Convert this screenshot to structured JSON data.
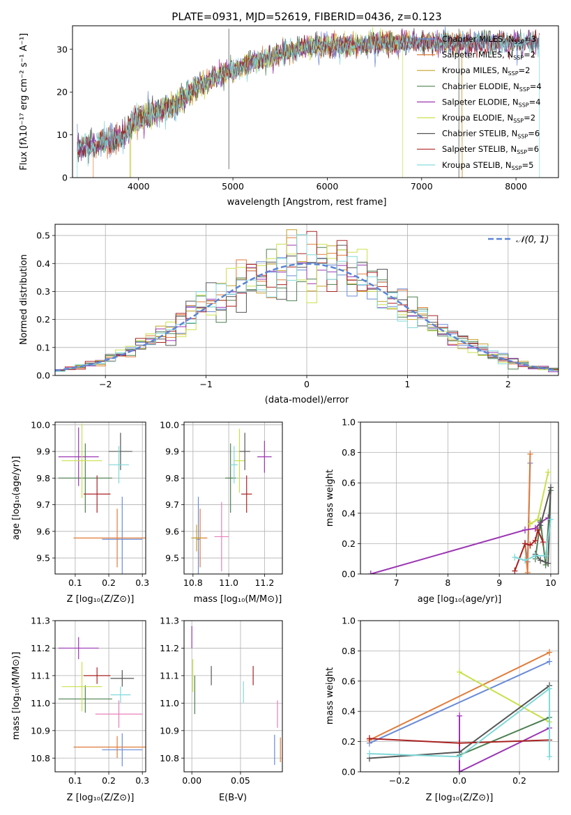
{
  "colors": {
    "Chabrier MILES": "#6a8bd9",
    "Salpeter MILES": "#e07b39",
    "Kroupa MILES": "#c4a12a",
    "Chabrier ELODIE": "#4d8050",
    "Salpeter ELODIE": "#9b35b3",
    "Kroupa ELODIE": "#c9e04a",
    "Chabrier STELIB": "#555555",
    "Salpeter STELIB": "#aa2222",
    "Kroupa STELIB": "#7fd8d8",
    "Pink": "#e87fb8",
    "Normal": "#5b84d6"
  },
  "chart_data": [
    {
      "type": "line",
      "title": "PLATE=0931, MJD=52619, FIBERID=0436, z=0.123",
      "xlabel": "wavelength [Angstrom, rest frame]",
      "ylabel": "Flux [fλ10⁻¹⁷ erg cm⁻² s⁻¹ A⁻¹]",
      "xlim": [
        3300,
        8450
      ],
      "ylim": [
        0,
        35.5
      ],
      "xticks": [
        "4000",
        "5000",
        "6000",
        "7000",
        "8000"
      ],
      "yticks": [
        "0",
        "10",
        "20",
        "30"
      ],
      "legend": [
        {
          "key": "Chabrier MILES",
          "label": "Chabrier MILES, N",
          "sub": "SSP",
          "tail": "=3"
        },
        {
          "key": "Salpeter MILES",
          "label": "Salpeter MILES, N",
          "sub": "SSP",
          "tail": "=2"
        },
        {
          "key": "Kroupa MILES",
          "label": "Kroupa MILES, N",
          "sub": "SSP",
          "tail": "=2"
        },
        {
          "key": "Chabrier ELODIE",
          "label": "Chabrier ELODIE, N",
          "sub": "SSP",
          "tail": "=4"
        },
        {
          "key": "Salpeter ELODIE",
          "label": "Salpeter ELODIE, N",
          "sub": "SSP",
          "tail": "=4"
        },
        {
          "key": "Kroupa ELODIE",
          "label": "Kroupa ELODIE, N",
          "sub": "SSP",
          "tail": "=2"
        },
        {
          "key": "Chabrier STELIB",
          "label": "Chabrier STELIB, N",
          "sub": "SSP",
          "tail": "=6"
        },
        {
          "key": "Salpeter STELIB",
          "label": "Salpeter STELIB, N",
          "sub": "SSP",
          "tail": "=6"
        },
        {
          "key": "Kroupa STELIB",
          "label": "Kroupa STELIB, N",
          "sub": "SSP",
          "tail": "=5"
        }
      ],
      "continuum": [
        [
          3350,
          7
        ],
        [
          3500,
          7.5
        ],
        [
          3700,
          8.5
        ],
        [
          3850,
          10
        ],
        [
          3950,
          13
        ],
        [
          4050,
          14
        ],
        [
          4150,
          15
        ],
        [
          4300,
          16
        ],
        [
          4400,
          17
        ],
        [
          4500,
          19
        ],
        [
          4600,
          21
        ],
        [
          4700,
          22
        ],
        [
          4800,
          23.5
        ],
        [
          4900,
          24
        ],
        [
          5000,
          25
        ],
        [
          5100,
          26
        ],
        [
          5200,
          27
        ],
        [
          5300,
          27.5
        ],
        [
          5400,
          28
        ],
        [
          5500,
          29
        ],
        [
          5600,
          29.5
        ],
        [
          5700,
          30
        ],
        [
          5800,
          30.5
        ],
        [
          5900,
          31
        ],
        [
          6000,
          31
        ],
        [
          6200,
          31
        ],
        [
          6400,
          31
        ],
        [
          6600,
          31.5
        ],
        [
          6800,
          31.5
        ],
        [
          7000,
          31.5
        ],
        [
          7200,
          31.5
        ],
        [
          7400,
          31.5
        ]
      ],
      "features": [
        [
          4957,
          34.8,
          2.0
        ],
        [
          7395,
          34.8,
          0
        ]
      ],
      "model_edges": [
        [
          "Salpeter MILES",
          3520,
          7430
        ],
        [
          "Kroupa MILES",
          3910,
          7430
        ],
        [
          "Kroupa ELODIE",
          3920,
          6800
        ],
        [
          "Kroupa STELIB",
          3350,
          8250
        ]
      ]
    },
    {
      "type": "histogram",
      "xlabel": "(data-model)/error",
      "ylabel": "Normed distribution",
      "xlim": [
        -2.5,
        2.5
      ],
      "ylim": [
        0,
        0.54
      ],
      "xticks": [
        "−2",
        "−1",
        "0",
        "1",
        "2"
      ],
      "yticks": [
        "0.0",
        "0.1",
        "0.2",
        "0.3",
        "0.4",
        "0.5"
      ],
      "legend": "𝒩(0, 1)",
      "bin_width": 0.1
    },
    {
      "type": "scatter",
      "xlabel": "Z [log₁₀(Z/Z⊙)]",
      "ylabel": "age  [log₁₀(age/yr)]",
      "xlim": [
        0.04,
        0.31
      ],
      "ylim": [
        9.44,
        10.01
      ],
      "xticks": [
        "0.1",
        "0.2",
        "0.3"
      ],
      "yticks": [
        "9.5",
        "9.6",
        "9.7",
        "9.8",
        "9.9",
        "10.0"
      ],
      "points": [
        {
          "key": "Chabrier MILES",
          "x": 0.24,
          "y": 9.57,
          "xe": 0.06,
          "ye": 0.16
        },
        {
          "key": "Salpeter MILES",
          "x": 0.225,
          "y": 9.575,
          "xe": 0.13,
          "ye": 0.11
        },
        {
          "key": "Chabrier ELODIE",
          "x": 0.13,
          "y": 9.8,
          "xe": 0.08,
          "ye": 0.13
        },
        {
          "key": "Salpeter ELODIE",
          "x": 0.11,
          "y": 9.88,
          "xe": 0.06,
          "ye": 0.11
        },
        {
          "key": "Kroupa ELODIE",
          "x": 0.12,
          "y": 9.865,
          "xe": 0.06,
          "ye": 0.14
        },
        {
          "key": "Chabrier STELIB",
          "x": 0.235,
          "y": 9.9,
          "xe": 0.035,
          "ye": 0.07
        },
        {
          "key": "Salpeter STELIB",
          "x": 0.165,
          "y": 9.74,
          "xe": 0.04,
          "ye": 0.07
        },
        {
          "key": "Kroupa STELIB",
          "x": 0.23,
          "y": 9.85,
          "xe": 0.03,
          "ye": 0.07
        }
      ]
    },
    {
      "type": "scatter",
      "xlabel": "mass [log₁₀(M/M⊙)]",
      "ylabel": "",
      "xlim": [
        10.75,
        11.3
      ],
      "ylim": [
        9.44,
        10.01
      ],
      "xticks": [
        "10.8",
        "11.0",
        "11.2"
      ],
      "yticks": [
        "9.5",
        "9.6",
        "9.7",
        "9.8",
        "9.9",
        "10.0"
      ],
      "points": [
        {
          "key": "Chabrier MILES",
          "x": 10.83,
          "y": 9.57,
          "xe": 0.01,
          "ye": 0.16
        },
        {
          "key": "Salpeter MILES",
          "x": 10.84,
          "y": 9.575,
          "xe": 0.04,
          "ye": 0.11
        },
        {
          "key": "Kroupa MILES",
          "x": 10.82,
          "y": 9.575,
          "xe": 0.03,
          "ye": 0.05
        },
        {
          "key": "Pink",
          "x": 10.96,
          "y": 9.58,
          "xe": 0.04,
          "ye": 0.13
        },
        {
          "key": "Chabrier ELODIE",
          "x": 11.01,
          "y": 9.8,
          "xe": 0.03,
          "ye": 0.13
        },
        {
          "key": "Salpeter ELODIE",
          "x": 11.2,
          "y": 9.88,
          "xe": 0.04,
          "ye": 0.06
        },
        {
          "key": "Kroupa ELODIE",
          "x": 11.06,
          "y": 9.865,
          "xe": 0.03,
          "ye": 0.12
        },
        {
          "key": "Chabrier STELIB",
          "x": 11.09,
          "y": 9.9,
          "xe": 0.03,
          "ye": 0.07
        },
        {
          "key": "Salpeter STELIB",
          "x": 11.1,
          "y": 9.74,
          "xe": 0.03,
          "ye": 0.07
        },
        {
          "key": "Kroupa STELIB",
          "x": 11.03,
          "y": 9.85,
          "xe": 0.02,
          "ye": 0.07
        }
      ]
    },
    {
      "type": "line",
      "xlabel": "age  [log₁₀(age/yr)]",
      "ylabel": "mass weight",
      "xlim": [
        6.3,
        10.15
      ],
      "ylim": [
        0,
        1
      ],
      "xticks": [
        "7",
        "8",
        "9",
        "10"
      ],
      "yticks": [
        "0.0",
        "0.2",
        "0.4",
        "0.6",
        "0.8",
        "1.0"
      ],
      "series": [
        {
          "key": "Chabrier MILES",
          "points": [
            [
              9.5,
              0.2
            ],
            [
              9.55,
              0.08
            ],
            [
              9.6,
              0.73
            ]
          ]
        },
        {
          "key": "Salpeter MILES",
          "points": [
            [
              9.5,
              0.2
            ],
            [
              9.55,
              0.01
            ],
            [
              9.6,
              0.79
            ]
          ]
        },
        {
          "key": "Kroupa ELODIE",
          "points": [
            [
              9.6,
              0.33
            ],
            [
              9.75,
              0.36
            ],
            [
              9.95,
              0.67
            ]
          ]
        },
        {
          "key": "Salpeter ELODIE",
          "points": [
            [
              6.5,
              0.0
            ],
            [
              9.5,
              0.29
            ],
            [
              9.7,
              0.3
            ],
            [
              9.8,
              0.34
            ],
            [
              9.95,
              0.37
            ]
          ]
        },
        {
          "key": "Chabrier ELODIE",
          "points": [
            [
              9.7,
              0.1
            ],
            [
              9.8,
              0.35
            ],
            [
              9.9,
              0.06
            ],
            [
              10.0,
              0.55
            ]
          ]
        },
        {
          "key": "Chabrier STELIB",
          "points": [
            [
              9.7,
              0.13
            ],
            [
              9.8,
              0.09
            ],
            [
              9.95,
              0.07
            ],
            [
              10.0,
              0.57
            ],
            [
              9.8,
              0.32
            ]
          ]
        },
        {
          "key": "Salpeter STELIB",
          "points": [
            [
              9.3,
              0.02
            ],
            [
              9.5,
              0.2
            ],
            [
              9.6,
              0.19
            ],
            [
              9.7,
              0.22
            ],
            [
              9.75,
              0.29
            ],
            [
              9.85,
              0.21
            ]
          ]
        },
        {
          "key": "Kroupa STELIB",
          "points": [
            [
              9.3,
              0.11
            ],
            [
              9.5,
              0.09
            ],
            [
              9.7,
              0.12
            ],
            [
              9.9,
              0.12
            ],
            [
              10.0,
              0.36
            ]
          ]
        }
      ]
    },
    {
      "type": "scatter",
      "xlabel": "Z [log₁₀(Z/Z⊙)]",
      "ylabel": "mass [log₁₀(M/M⊙)]",
      "xlim": [
        0.04,
        0.31
      ],
      "ylim": [
        10.75,
        11.3
      ],
      "xticks": [
        "0.1",
        "0.2",
        "0.3"
      ],
      "yticks": [
        "10.8",
        "10.9",
        "11.0",
        "11.1",
        "11.2",
        "11.3"
      ],
      "points": [
        {
          "key": "Chabrier MILES",
          "x": 0.24,
          "y": 10.83,
          "xe": 0.06,
          "ye": 0.06
        },
        {
          "key": "Salpeter MILES",
          "x": 0.225,
          "y": 10.84,
          "xe": 0.13,
          "ye": 0.04
        },
        {
          "key": "Pink",
          "x": 0.23,
          "y": 10.96,
          "xe": 0.07,
          "ye": 0.05
        },
        {
          "key": "Chabrier ELODIE",
          "x": 0.13,
          "y": 11.015,
          "xe": 0.08,
          "ye": 0.05
        },
        {
          "key": "Salpeter ELODIE",
          "x": 0.11,
          "y": 11.2,
          "xe": 0.06,
          "ye": 0.04
        },
        {
          "key": "Kroupa ELODIE",
          "x": 0.12,
          "y": 11.06,
          "xe": 0.06,
          "ye": 0.09
        },
        {
          "key": "Chabrier STELIB",
          "x": 0.24,
          "y": 11.09,
          "xe": 0.035,
          "ye": 0.03
        },
        {
          "key": "Salpeter STELIB",
          "x": 0.165,
          "y": 11.1,
          "xe": 0.04,
          "ye": 0.03
        },
        {
          "key": "Kroupa STELIB",
          "x": 0.235,
          "y": 11.03,
          "xe": 0.03,
          "ye": 0.03
        }
      ]
    },
    {
      "type": "errorbar",
      "xlabel": "E(B-V)",
      "ylabel": "",
      "xlim": [
        -0.008,
        0.093
      ],
      "ylim": [
        10.75,
        11.3
      ],
      "xticks": [
        "0.00",
        "0.05"
      ],
      "yticks": [
        "10.8",
        "10.9",
        "11.0",
        "11.1",
        "11.2",
        "11.3"
      ],
      "points": [
        {
          "key": "Chabrier MILES",
          "x": 0.085,
          "y": 10.83,
          "ye": 0.055
        },
        {
          "key": "Salpeter MILES",
          "x": 0.091,
          "y": 10.83,
          "ye": 0.045
        },
        {
          "key": "Pink",
          "x": 0.088,
          "y": 10.96,
          "ye": 0.05
        },
        {
          "key": "Chabrier ELODIE",
          "x": 0.003,
          "y": 11.03,
          "ye": 0.07
        },
        {
          "key": "Salpeter ELODIE",
          "x": 0.0,
          "y": 11.24,
          "ye": 0.04
        },
        {
          "key": "Kroupa ELODIE",
          "x": 0.001,
          "y": 11.1,
          "ye": 0.06
        },
        {
          "key": "Chabrier STELIB",
          "x": 0.02,
          "y": 11.1,
          "ye": 0.035
        },
        {
          "key": "Salpeter STELIB",
          "x": 0.063,
          "y": 11.1,
          "ye": 0.035
        },
        {
          "key": "Kroupa STELIB",
          "x": 0.053,
          "y": 11.04,
          "ye": 0.04
        }
      ]
    },
    {
      "type": "line",
      "xlabel": "Z [log₁₀(Z/Z⊙)]",
      "ylabel": "mass weight",
      "xlim": [
        -0.33,
        0.33
      ],
      "ylim": [
        0,
        1
      ],
      "xticks": [
        "−0.2",
        "0.0",
        "0.2"
      ],
      "yticks": [
        "0.0",
        "0.2",
        "0.4",
        "0.6",
        "0.8",
        "1.0"
      ],
      "series": [
        {
          "key": "Chabrier MILES",
          "points": [
            [
              -0.3,
              0.19
            ],
            [
              0.3,
              0.73
            ]
          ]
        },
        {
          "key": "Salpeter MILES",
          "points": [
            [
              -0.3,
              0.21
            ],
            [
              0.3,
              0.79
            ]
          ]
        },
        {
          "key": "Kroupa ELODIE",
          "points": [
            [
              0.0,
              0.66
            ],
            [
              0.3,
              0.33
            ]
          ]
        },
        {
          "key": "Salpeter ELODIE",
          "points": [
            [
              0.0,
              0.37
            ],
            [
              0.0,
              0.0
            ],
            [
              0.3,
              0.29
            ]
          ]
        },
        {
          "key": "Chabrier ELODIE",
          "points": [
            [
              0.0,
              0.11
            ],
            [
              0.3,
              0.36
            ]
          ]
        },
        {
          "key": "Chabrier STELIB",
          "points": [
            [
              -0.3,
              0.09
            ],
            [
              0.0,
              0.13
            ],
            [
              0.3,
              0.57
            ]
          ]
        },
        {
          "key": "Salpeter STELIB",
          "points": [
            [
              -0.3,
              0.22
            ],
            [
              0.0,
              0.19
            ],
            [
              0.3,
              0.21
            ]
          ]
        },
        {
          "key": "Kroupa STELIB",
          "points": [
            [
              -0.3,
              0.12
            ],
            [
              0.0,
              0.1
            ],
            [
              0.3,
              0.55
            ],
            [
              0.3,
              0.1
            ]
          ]
        }
      ]
    }
  ]
}
